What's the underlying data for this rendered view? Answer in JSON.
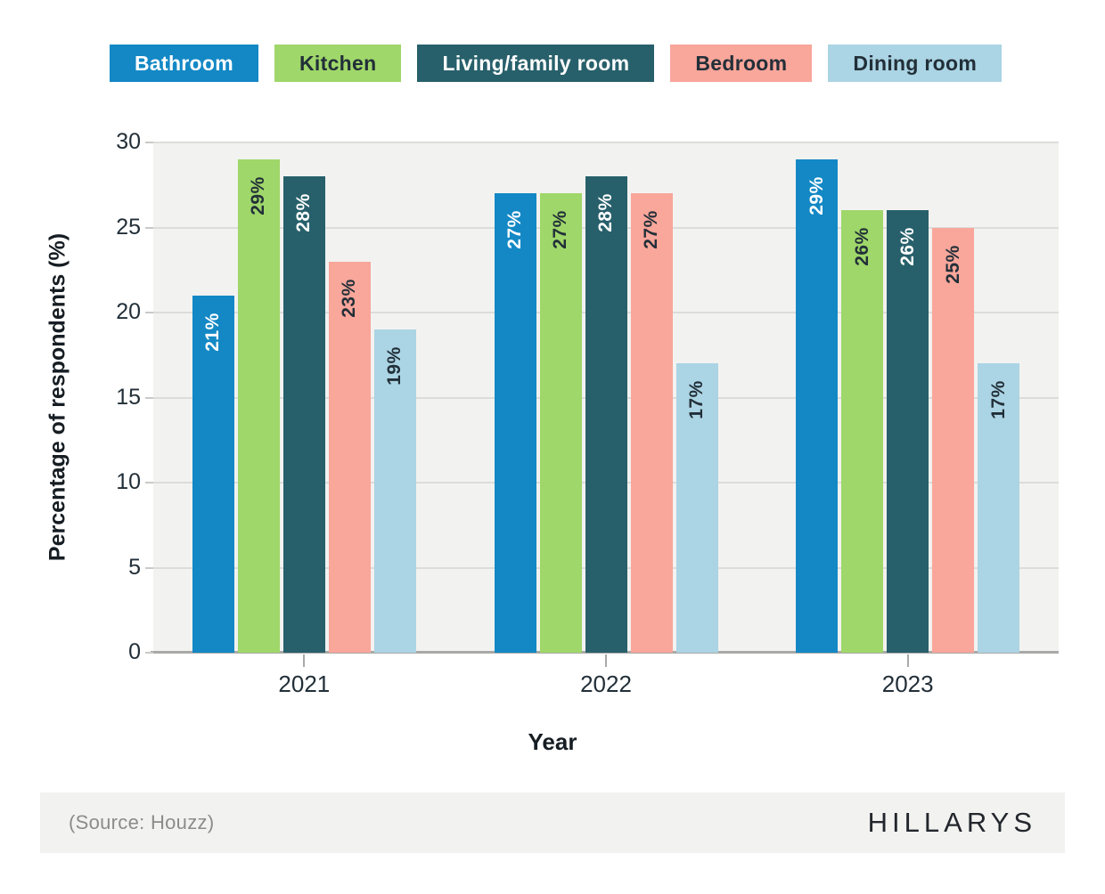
{
  "chart_data": {
    "type": "bar",
    "title": "",
    "xlabel": "Year",
    "ylabel": "Percentage of respondents (%)",
    "categories": [
      "2021",
      "2022",
      "2023"
    ],
    "series": [
      {
        "name": "Bathroom",
        "values": [
          21,
          27,
          29
        ],
        "color": "#1388c5",
        "label_color": "#ffffff"
      },
      {
        "name": "Kitchen",
        "values": [
          29,
          27,
          26
        ],
        "color": "#9fd76a",
        "label_color": "#222f38"
      },
      {
        "name": "Living/family room",
        "values": [
          28,
          28,
          26
        ],
        "color": "#27606b",
        "label_color": "#ffffff"
      },
      {
        "name": "Bedroom",
        "values": [
          23,
          27,
          25
        ],
        "color": "#f9a69b",
        "label_color": "#222f38"
      },
      {
        "name": "Dining room",
        "values": [
          19,
          17,
          17
        ],
        "color": "#abd4e4",
        "label_color": "#222f38"
      }
    ],
    "ylim": [
      0,
      30
    ],
    "yticks": [
      0,
      5,
      10,
      15,
      20,
      25,
      30
    ],
    "grid": true,
    "legend_position": "top",
    "value_label_format": "{v}%"
  },
  "footer": {
    "source": "(Source: Houzz)",
    "logo": "HILLARYS"
  }
}
